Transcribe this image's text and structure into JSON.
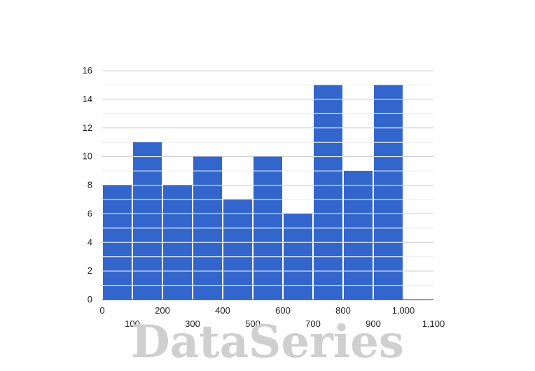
{
  "chart_data": {
    "type": "bar",
    "subtype": "histogram",
    "bins": [
      {
        "start": 0,
        "end": 100,
        "count": 8
      },
      {
        "start": 100,
        "end": 200,
        "count": 11
      },
      {
        "start": 200,
        "end": 300,
        "count": 8
      },
      {
        "start": 300,
        "end": 400,
        "count": 10
      },
      {
        "start": 400,
        "end": 500,
        "count": 7
      },
      {
        "start": 500,
        "end": 600,
        "count": 10
      },
      {
        "start": 600,
        "end": 700,
        "count": 6
      },
      {
        "start": 700,
        "end": 800,
        "count": 15
      },
      {
        "start": 800,
        "end": 900,
        "count": 9
      },
      {
        "start": 900,
        "end": 1000,
        "count": 15
      }
    ],
    "xlim": [
      0,
      1100
    ],
    "ylim": [
      0,
      16
    ],
    "x_ticks": [
      "0",
      "100",
      "200",
      "300",
      "400",
      "500",
      "600",
      "700",
      "800",
      "900",
      "1,000",
      "1,100"
    ],
    "y_ticks": [
      "0",
      "2",
      "4",
      "6",
      "8",
      "10",
      "12",
      "14",
      "16"
    ],
    "title": "",
    "xlabel": "",
    "ylabel": "",
    "grid": true,
    "bar_color": "#3366cc",
    "gridline_color": "#cccccc",
    "minor_gridline_color": "#ebebeb"
  },
  "watermark": "DataSeries"
}
